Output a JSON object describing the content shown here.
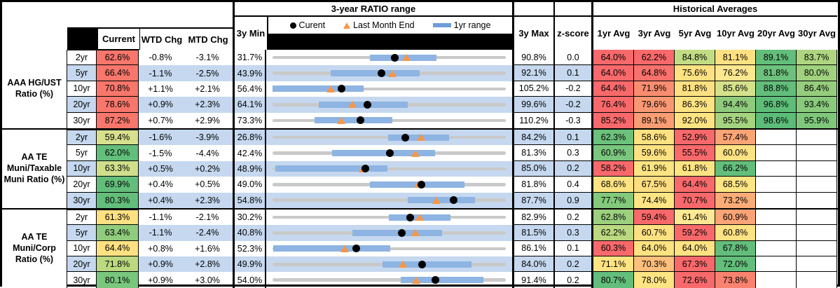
{
  "header": {
    "range_title": "3-year RATIO range",
    "hist_title": "Historical Averages",
    "legend": {
      "current": "Curent",
      "last_month_end": "Last Month End",
      "one_yr_range": "1yr range"
    },
    "cols": {
      "current": "Current",
      "wtd": "WTD Chg",
      "mtd": "MTD Chg",
      "min": "3y Min",
      "max": "3y Max",
      "z": "z-score"
    },
    "avg_cols": [
      "1yr Avg",
      "3yr Avg",
      "5yr Avg",
      "10yr Avg",
      "20yr Avg",
      "30yr Avg"
    ]
  },
  "colors": {
    "stripe_blue": "#C5D8EF",
    "range_bar_blue": "#8DB4E2",
    "track_gray": "#C9C9C9",
    "marker_orange": "#F79646",
    "heat_red": "#F8696B",
    "heat_yellow": "#FFE182",
    "heat_green": "#63BE7B"
  },
  "chart_data": {
    "type": "range-dot",
    "note": "Per row: gray track spans min3y..max3y; blue bar = 1yr range; black dot = current; orange triangle = last month end",
    "groups": [
      {
        "label": "AAA HG/UST Ratio (%)",
        "rows": [
          {
            "tenor": "2yr",
            "current": "62.6%",
            "cc": "#F8766B",
            "wtd": "-0.8%",
            "mtd": "-3.1%",
            "min": "31.7%",
            "max": "90.8%",
            "z": "0.0",
            "minv": 31.7,
            "maxv": 90.8,
            "curv": 62.6,
            "lmev": 65.6,
            "barlo": 56.3,
            "barhi": 73.2,
            "avgs": [
              {
                "v": "64.0%",
                "c": "#F8696B"
              },
              {
                "v": "62.2%",
                "c": "#F8696B"
              },
              {
                "v": "84.8%",
                "c": "#C2DC84"
              },
              {
                "v": "81.1%",
                "c": "#FFE182"
              },
              {
                "v": "89.1%",
                "c": "#63BE7B"
              },
              {
                "v": "83.7%",
                "c": "#AFD580"
              }
            ]
          },
          {
            "tenor": "5yr",
            "current": "66.4%",
            "cc": "#F8766B",
            "wtd": "-1.1%",
            "mtd": "-2.5%",
            "min": "43.9%",
            "max": "92.1%",
            "z": "0.1",
            "minv": 43.9,
            "maxv": 92.1,
            "curv": 66.4,
            "lmev": 68.7,
            "barlo": 55.9,
            "barhi": 74.3,
            "avgs": [
              {
                "v": "64.0%",
                "c": "#F8696B"
              },
              {
                "v": "64.8%",
                "c": "#F8716C"
              },
              {
                "v": "75.6%",
                "c": "#FFE182"
              },
              {
                "v": "76.2%",
                "c": "#FEE78F"
              },
              {
                "v": "81.8%",
                "c": "#6EC17D"
              },
              {
                "v": "80.0%",
                "c": "#9FD17E"
              }
            ]
          },
          {
            "tenor": "10yr",
            "current": "70.8%",
            "cc": "#F8766B",
            "wtd": "+1.1%",
            "mtd": "+2.1%",
            "min": "56.4%",
            "max": "105.2%",
            "z": "-0.2",
            "minv": 56.4,
            "maxv": 105.2,
            "curv": 70.8,
            "lmev": 68.6,
            "barlo": 56.4,
            "barhi": 75.5,
            "avgs": [
              {
                "v": "64.4%",
                "c": "#F8696B"
              },
              {
                "v": "71.9%",
                "c": "#F98D70"
              },
              {
                "v": "81.8%",
                "c": "#FFE182"
              },
              {
                "v": "85.6%",
                "c": "#D5E28B"
              },
              {
                "v": "88.8%",
                "c": "#63BE7B"
              },
              {
                "v": "86.4%",
                "c": "#95CD7D"
              }
            ]
          },
          {
            "tenor": "20yr",
            "current": "78.6%",
            "cc": "#F8766B",
            "wtd": "+0.9%",
            "mtd": "+2.3%",
            "min": "64.1%",
            "max": "99.6%",
            "z": "-0.2",
            "minv": 64.1,
            "maxv": 99.6,
            "curv": 78.6,
            "lmev": 76.3,
            "barlo": 71.1,
            "barhi": 84.7,
            "avgs": [
              {
                "v": "76.4%",
                "c": "#F8696B"
              },
              {
                "v": "79.6%",
                "c": "#FA9874"
              },
              {
                "v": "86.3%",
                "c": "#FFE382"
              },
              {
                "v": "94.4%",
                "c": "#8FCB7D"
              },
              {
                "v": "96.8%",
                "c": "#5FBD7A"
              },
              {
                "v": "93.4%",
                "c": "#89CA7C"
              }
            ]
          },
          {
            "tenor": "30yr",
            "current": "87.2%",
            "cc": "#F8766B",
            "wtd": "+0.7%",
            "mtd": "+2.9%",
            "min": "73.3%",
            "max": "110.2%",
            "z": "-0.3",
            "minv": 73.3,
            "maxv": 110.2,
            "curv": 87.2,
            "lmev": 84.2,
            "barlo": 80.0,
            "barhi": 92.3,
            "avgs": [
              {
                "v": "85.2%",
                "c": "#F8696B"
              },
              {
                "v": "89.1%",
                "c": "#FB9D74"
              },
              {
                "v": "92.0%",
                "c": "#FFE382"
              },
              {
                "v": "95.5%",
                "c": "#A5D37F"
              },
              {
                "v": "98.6%",
                "c": "#5CBC79"
              },
              {
                "v": "95.9%",
                "c": "#7FC87B"
              }
            ]
          }
        ]
      },
      {
        "label": "AA TE Muni/Taxable Muni Ratio (%)",
        "rows": [
          {
            "tenor": "2yr",
            "current": "59.4%",
            "cc": "#D8E08E",
            "wtd": "-1.6%",
            "mtd": "-3.9%",
            "min": "26.8%",
            "max": "84.2%",
            "z": "0.1",
            "minv": 26.8,
            "maxv": 84.2,
            "curv": 59.4,
            "lmev": 63.3,
            "barlo": 55.3,
            "barhi": 70.3,
            "avgs": [
              {
                "v": "62.3%",
                "c": "#6CC17C"
              },
              {
                "v": "58.6%",
                "c": "#FFE182"
              },
              {
                "v": "52.9%",
                "c": "#F8696B"
              },
              {
                "v": "57.4%",
                "c": "#FBA475"
              },
              null,
              null
            ]
          },
          {
            "tenor": "5yr",
            "current": "62.0%",
            "cc": "#63BE7B",
            "wtd": "-1.5%",
            "mtd": "-4.4%",
            "min": "42.4%",
            "max": "81.3%",
            "z": "0.3",
            "minv": 42.4,
            "maxv": 81.3,
            "curv": 62.0,
            "lmev": 66.2,
            "barlo": 52.4,
            "barhi": 69.5,
            "avgs": [
              {
                "v": "60.9%",
                "c": "#7AC67E"
              },
              {
                "v": "59.6%",
                "c": "#FFE182"
              },
              {
                "v": "55.5%",
                "c": "#F8696B"
              },
              {
                "v": "60.0%",
                "c": "#FFE283"
              },
              null,
              null
            ]
          },
          {
            "tenor": "10yr",
            "current": "63.3%",
            "cc": "#CFDF8C",
            "wtd": "+0.5%",
            "mtd": "+0.2%",
            "min": "48.9%",
            "max": "85.0%",
            "z": "0.2",
            "minv": 48.9,
            "maxv": 85.0,
            "curv": 63.3,
            "lmev": 62.9,
            "barlo": 49.4,
            "barhi": 66.7,
            "avgs": [
              {
                "v": "58.2%",
                "c": "#F8696B"
              },
              {
                "v": "61.9%",
                "c": "#FFE483"
              },
              {
                "v": "61.8%",
                "c": "#FFE483"
              },
              {
                "v": "66.2%",
                "c": "#63BE7B"
              },
              null,
              null
            ]
          },
          {
            "tenor": "20yr",
            "current": "69.9%",
            "cc": "#63BE7B",
            "wtd": "+0.4%",
            "mtd": "+0.5%",
            "min": "49.0%",
            "max": "81.8%",
            "z": "0.4",
            "minv": 49.0,
            "maxv": 81.8,
            "curv": 69.9,
            "lmev": 69.5,
            "barlo": 62.7,
            "barhi": 76.0,
            "avgs": [
              {
                "v": "68.6%",
                "c": "#FFE382"
              },
              {
                "v": "67.5%",
                "c": "#FEDD80"
              },
              {
                "v": "64.4%",
                "c": "#F8696B"
              },
              {
                "v": "68.5%",
                "c": "#FFE583"
              },
              null,
              null
            ]
          },
          {
            "tenor": "30yr",
            "current": "80.3%",
            "cc": "#63BE7B",
            "wtd": "+0.4%",
            "mtd": "+2.3%",
            "min": "54.8%",
            "max": "87.7%",
            "z": "0.9",
            "minv": 54.8,
            "maxv": 87.7,
            "curv": 80.3,
            "lmev": 77.9,
            "barlo": 73.9,
            "barhi": 83.3,
            "avgs": [
              {
                "v": "77.7%",
                "c": "#83C97C"
              },
              {
                "v": "74.4%",
                "c": "#FFE584"
              },
              {
                "v": "70.7%",
                "c": "#F8696B"
              },
              {
                "v": "73.2%",
                "c": "#FCAC77"
              },
              null,
              null
            ]
          }
        ]
      },
      {
        "label": "AA TE Muni/Corp Ratio (%)",
        "rows": [
          {
            "tenor": "2yr",
            "current": "61.3%",
            "cc": "#FFE182",
            "wtd": "-1.1%",
            "mtd": "-2.1%",
            "min": "30.2%",
            "max": "82.9%",
            "z": "0.2",
            "minv": 30.2,
            "maxv": 82.9,
            "curv": 61.3,
            "lmev": 63.4,
            "barlo": 56.4,
            "barhi": 70.4,
            "avgs": [
              {
                "v": "62.8%",
                "c": "#9CD07E"
              },
              {
                "v": "59.4%",
                "c": "#F8696B"
              },
              {
                "v": "61.4%",
                "c": "#FEE893"
              },
              {
                "v": "60.9%",
                "c": "#FBA476"
              },
              null,
              null
            ]
          },
          {
            "tenor": "5yr",
            "current": "63.4%",
            "cc": "#90CC7D",
            "wtd": "-1.1%",
            "mtd": "-2.4%",
            "min": "40.8%",
            "max": "81.5%",
            "z": "0.3",
            "minv": 40.8,
            "maxv": 81.5,
            "curv": 63.4,
            "lmev": 65.7,
            "barlo": 54.7,
            "barhi": 70.4,
            "avgs": [
              {
                "v": "62.2%",
                "c": "#BBD980"
              },
              {
                "v": "60.7%",
                "c": "#FFE182"
              },
              {
                "v": "59.2%",
                "c": "#F8696B"
              },
              {
                "v": "60.8%",
                "c": "#FFE283"
              },
              null,
              null
            ]
          },
          {
            "tenor": "10yr",
            "current": "64.4%",
            "cc": "#FFE182",
            "wtd": "+0.8%",
            "mtd": "+1.6%",
            "min": "52.3%",
            "max": "86.1%",
            "z": "0.1",
            "minv": 52.3,
            "maxv": 86.1,
            "curv": 64.4,
            "lmev": 62.8,
            "barlo": 52.4,
            "barhi": 69.4,
            "avgs": [
              {
                "v": "60.3%",
                "c": "#F8696B"
              },
              {
                "v": "64.0%",
                "c": "#FFE281"
              },
              {
                "v": "64.0%",
                "c": "#FFE281"
              },
              {
                "v": "67.8%",
                "c": "#63BE7B"
              },
              null,
              null
            ]
          },
          {
            "tenor": "20yr",
            "current": "71.8%",
            "cc": "#BBD980",
            "wtd": "+0.9%",
            "mtd": "+2.8%",
            "min": "49.9%",
            "max": "84.0%",
            "z": "0.2",
            "minv": 49.9,
            "maxv": 84.0,
            "curv": 71.8,
            "lmev": 68.9,
            "barlo": 66.0,
            "barhi": 79.0,
            "avgs": [
              {
                "v": "71.1%",
                "c": "#FFE483"
              },
              {
                "v": "70.3%",
                "c": "#FDBF7C"
              },
              {
                "v": "67.3%",
                "c": "#F8696B"
              },
              {
                "v": "72.0%",
                "c": "#63BE7B"
              },
              null,
              null
            ]
          },
          {
            "tenor": "30yr",
            "current": "80.1%",
            "cc": "#79C67D",
            "wtd": "+0.9%",
            "mtd": "+3.0%",
            "min": "54.0%",
            "max": "91.4%",
            "z": "0.2",
            "minv": 54.0,
            "maxv": 91.4,
            "curv": 80.1,
            "lmev": 77.0,
            "barlo": 74.5,
            "barhi": 87.8,
            "avgs": [
              {
                "v": "80.7%",
                "c": "#63BE7B"
              },
              {
                "v": "78.0%",
                "c": "#FFE483"
              },
              {
                "v": "72.6%",
                "c": "#F8696B"
              },
              {
                "v": "73.8%",
                "c": "#F9836E"
              },
              null,
              null
            ]
          }
        ]
      }
    ]
  }
}
